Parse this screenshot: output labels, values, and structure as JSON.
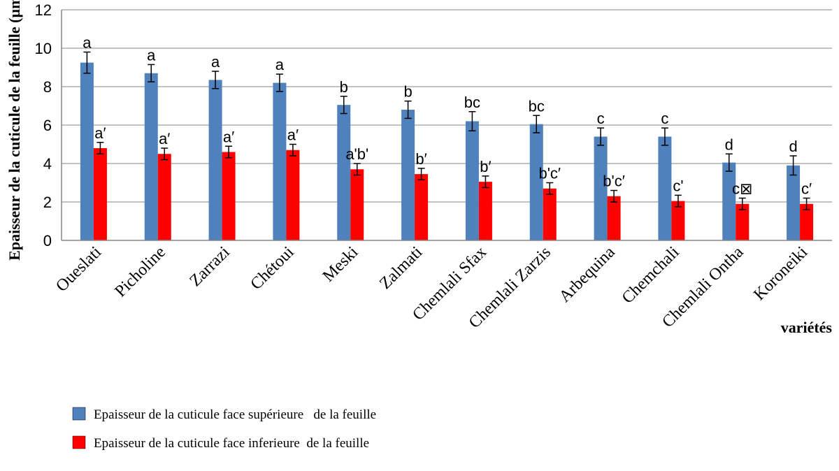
{
  "chart_data": {
    "type": "bar",
    "ylabel": "Epaisseur de la cuticule de la feuille (µm)",
    "xlabel": "variétés",
    "ylim": [
      0,
      12
    ],
    "yticks": [
      0,
      2,
      4,
      6,
      8,
      10,
      12
    ],
    "grid": true,
    "legend_position": "bottom-left",
    "categories": [
      "Oueslati",
      "Picholine",
      "Zarrazi",
      "Chétoui",
      "Meski",
      "Zalmati",
      "Chemlali Sfax",
      "Chemlali Zarzis",
      "Arbequina",
      "Chemchali",
      "Chemlali Ontha",
      "Koroneiki"
    ],
    "series": [
      {
        "name": "Epaisseur de la cuticule face supérieure   de la feuille",
        "color": "#4f81bd",
        "values": [
          9.25,
          8.7,
          8.35,
          8.2,
          7.05,
          6.8,
          6.2,
          6.05,
          5.4,
          5.4,
          4.05,
          3.9
        ],
        "errors": [
          0.55,
          0.45,
          0.45,
          0.45,
          0.45,
          0.45,
          0.5,
          0.45,
          0.45,
          0.45,
          0.45,
          0.5
        ],
        "labels": [
          "a",
          "a",
          "a",
          "a",
          "b",
          "b",
          "bc",
          "bc",
          "c",
          "c",
          "d",
          "d"
        ]
      },
      {
        "name": "Epaisseur de la cuticule face inferieure  de la feuille",
        "color": "#ff0000",
        "values": [
          4.8,
          4.5,
          4.6,
          4.7,
          3.7,
          3.45,
          3.05,
          2.7,
          2.3,
          2.05,
          1.9,
          1.9
        ],
        "errors": [
          0.3,
          0.3,
          0.3,
          0.3,
          0.3,
          0.3,
          0.3,
          0.3,
          0.3,
          0.3,
          0.3,
          0.3
        ],
        "labels": [
          "a′",
          "a′",
          "a′",
          "a′",
          "a'b'",
          "b′",
          "b′",
          "b'c′",
          "b'c′",
          "c'",
          "c⊠",
          "c′"
        ]
      }
    ]
  }
}
